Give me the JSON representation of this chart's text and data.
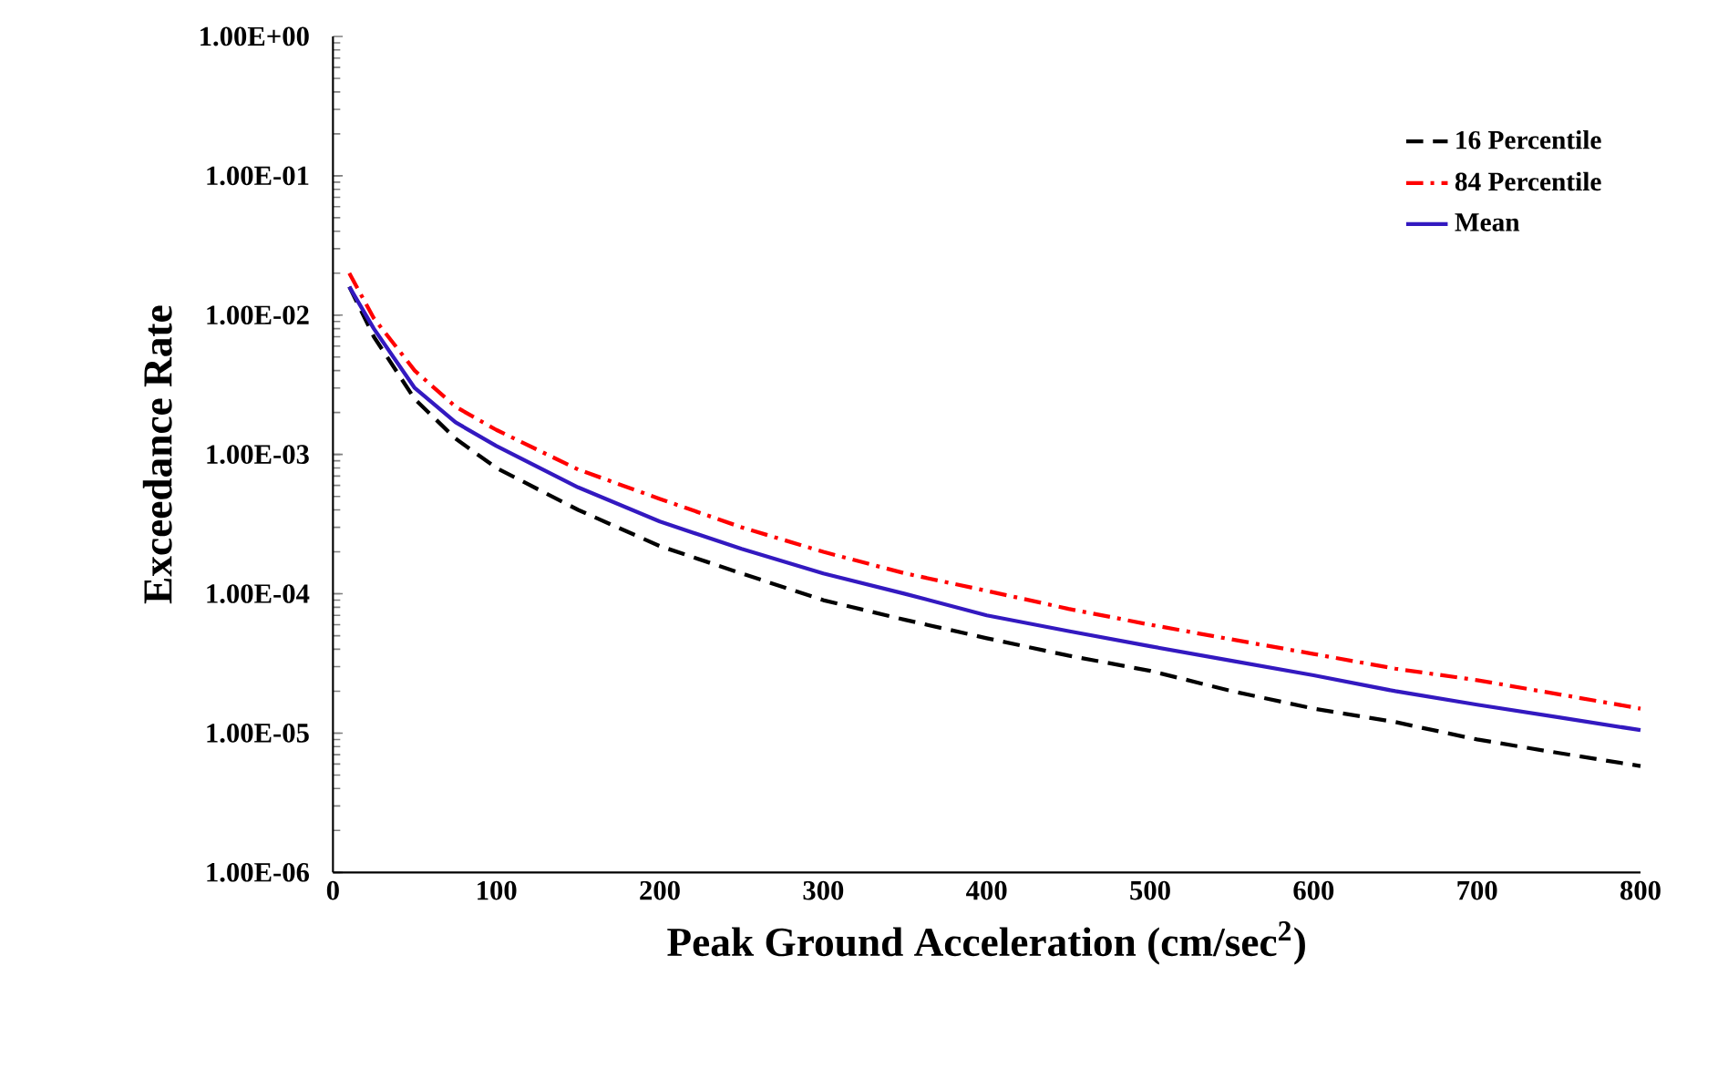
{
  "chart_data": {
    "type": "line",
    "xlabel": "Peak Ground Acceleration (cm/sec$^{2}$)",
    "ylabel": "Exceedance Rate",
    "x": [
      10,
      25,
      50,
      75,
      100,
      150,
      200,
      250,
      300,
      350,
      400,
      450,
      500,
      550,
      600,
      650,
      700,
      750,
      800
    ],
    "series": [
      {
        "name": "16 Percentile",
        "color": "#000000",
        "line_style": "dashed",
        "values": [
          0.016,
          0.007,
          0.0025,
          0.0013,
          0.0008,
          0.0004,
          0.00022,
          0.00014,
          9e-05,
          6.5e-05,
          4.8e-05,
          3.6e-05,
          2.8e-05,
          2e-05,
          1.5e-05,
          1.2e-05,
          9e-06,
          7.2e-06,
          5.8e-06
        ]
      },
      {
        "name": "84 Percentile",
        "color": "#ff0000",
        "line_style": "dashdot",
        "values": [
          0.02,
          0.0095,
          0.004,
          0.0022,
          0.0015,
          0.00078,
          0.00048,
          0.0003,
          0.0002,
          0.00014,
          0.000105,
          7.8e-05,
          6e-05,
          4.7e-05,
          3.7e-05,
          2.9e-05,
          2.4e-05,
          1.9e-05,
          1.5e-05
        ]
      },
      {
        "name": "Mean",
        "color": "#3319c0",
        "line_style": "solid",
        "values": [
          0.016,
          0.008,
          0.003,
          0.0017,
          0.00115,
          0.00058,
          0.00033,
          0.00021,
          0.00014,
          0.0001,
          7e-05,
          5.4e-05,
          4.2e-05,
          3.3e-05,
          2.6e-05,
          2e-05,
          1.6e-05,
          1.3e-05,
          1.05e-05
        ]
      }
    ],
    "log": "y",
    "xlim": [
      0,
      800
    ],
    "ylim": [
      1e-06,
      1
    ],
    "xticks": [
      0,
      100,
      200,
      300,
      400,
      500,
      600,
      700,
      800
    ],
    "yticks": [
      {
        "value": 1e-06,
        "label": "1.00E-06"
      },
      {
        "value": 1e-05,
        "label": "1.00E-05"
      },
      {
        "value": 0.0001,
        "label": "1.00E-04"
      },
      {
        "value": 0.001,
        "label": "1.00E-03"
      },
      {
        "value": 0.01,
        "label": "1.00E-02"
      },
      {
        "value": 0.1,
        "label": "1.00E-01"
      },
      {
        "value": 1,
        "label": "1.00E+00"
      }
    ],
    "legend": "top right",
    "grid": false
  }
}
